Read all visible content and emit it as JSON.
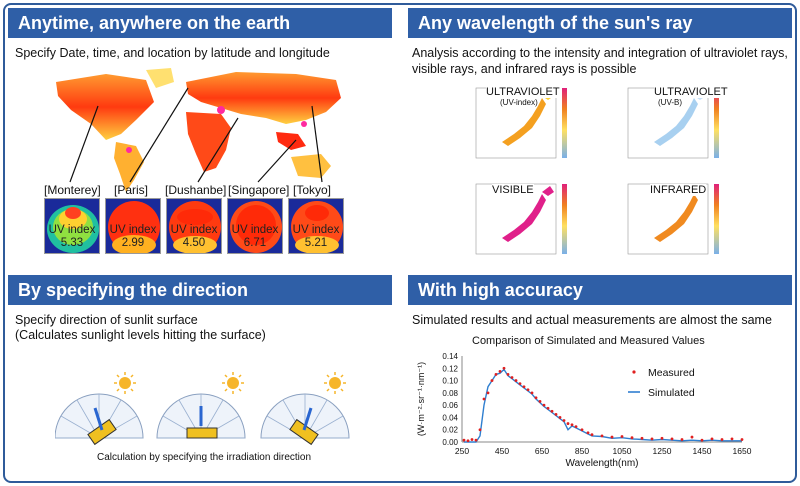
{
  "panels": {
    "anytime": {
      "title": "Anytime, anywhere on the earth",
      "desc": "Specify Date, time, and location by latitude and longitude",
      "cities": [
        {
          "name": "[Monterey]",
          "uv_label": "UV index",
          "uv_value": "5.33"
        },
        {
          "name": "[Paris]",
          "uv_label": "UV index",
          "uv_value": "2.99"
        },
        {
          "name": "[Dushanbe]",
          "uv_label": "UV index",
          "uv_value": "4.50"
        },
        {
          "name": "[Singapore]",
          "uv_label": "UV index",
          "uv_value": "6.71"
        },
        {
          "name": "[Tokyo]",
          "uv_label": "UV index",
          "uv_value": "5.21"
        }
      ]
    },
    "wavelength": {
      "title": "Any wavelength of the sun's ray",
      "desc_line1": "Analysis according to the intensity and integration of ultraviolet rays,",
      "desc_line2": "visible rays, and infrared rays is possible",
      "maps": [
        {
          "label": "ULTRAVIOLET",
          "sub": "(UV-index)"
        },
        {
          "label": "ULTRAVIOLET",
          "sub": "(UV-B)"
        },
        {
          "label": "VISIBLE",
          "sub": ""
        },
        {
          "label": "INFRARED",
          "sub": ""
        }
      ]
    },
    "direction": {
      "title": "By specifying the direction",
      "desc_line1": "Specify direction of sunlit surface",
      "desc_line2": "(Calculates sunlight levels hitting the surface)",
      "caption": "Calculation by specifying the irradiation direction"
    },
    "accuracy": {
      "title": "With high accuracy",
      "desc": "Simulated results and actual measurements are almost the same"
    }
  },
  "colors": {
    "header_bg": "#2f5fa7",
    "measured": "#e02020",
    "simulated": "#2f7fd0"
  },
  "chart_data": {
    "type": "line",
    "title": "Comparison of Simulated and Measured Values",
    "xlabel": "Wavelength(nm)",
    "ylabel": "(W·m⁻²·sr⁻¹·nm⁻¹)",
    "xlim": [
      250,
      1650
    ],
    "ylim": [
      0,
      0.14
    ],
    "x_ticks": [
      "250",
      "450",
      "650",
      "850",
      "1050",
      "1250",
      "1450",
      "1650"
    ],
    "y_ticks": [
      "0.00",
      "0.02",
      "0.04",
      "0.06",
      "0.08",
      "0.10",
      "0.12",
      "0.14"
    ],
    "series": [
      {
        "name": "Measured",
        "style": "points",
        "x": [
          260,
          280,
          300,
          320,
          340,
          360,
          380,
          400,
          420,
          440,
          460,
          480,
          500,
          520,
          540,
          560,
          580,
          600,
          620,
          640,
          660,
          680,
          700,
          720,
          740,
          760,
          780,
          800,
          820,
          850,
          880,
          900,
          950,
          1000,
          1050,
          1100,
          1150,
          1200,
          1250,
          1300,
          1350,
          1400,
          1450,
          1500,
          1550,
          1600,
          1650
        ],
        "y": [
          0.003,
          0.002,
          0.004,
          0.003,
          0.02,
          0.07,
          0.08,
          0.1,
          0.11,
          0.115,
          0.12,
          0.11,
          0.105,
          0.1,
          0.095,
          0.09,
          0.085,
          0.08,
          0.072,
          0.066,
          0.06,
          0.055,
          0.05,
          0.045,
          0.04,
          0.035,
          0.03,
          0.028,
          0.025,
          0.02,
          0.015,
          0.012,
          0.01,
          0.008,
          0.009,
          0.007,
          0.006,
          0.005,
          0.006,
          0.005,
          0.004,
          0.008,
          0.003,
          0.005,
          0.004,
          0.005,
          0.004
        ]
      },
      {
        "name": "Simulated",
        "style": "line",
        "x": [
          260,
          280,
          300,
          320,
          340,
          360,
          380,
          400,
          420,
          440,
          460,
          480,
          500,
          520,
          540,
          560,
          580,
          600,
          620,
          640,
          660,
          680,
          700,
          720,
          740,
          760,
          780,
          800,
          820,
          850,
          880,
          900,
          950,
          1000,
          1050,
          1100,
          1150,
          1200,
          1250,
          1300,
          1350,
          1400,
          1450,
          1500,
          1550,
          1600,
          1650
        ],
        "y": [
          0.0,
          0.0,
          0.0,
          0.0,
          0.01,
          0.06,
          0.09,
          0.1,
          0.11,
          0.112,
          0.118,
          0.108,
          0.103,
          0.098,
          0.093,
          0.088,
          0.083,
          0.078,
          0.07,
          0.064,
          0.058,
          0.053,
          0.048,
          0.043,
          0.038,
          0.033,
          0.02,
          0.026,
          0.023,
          0.018,
          0.013,
          0.01,
          0.009,
          0.006,
          0.007,
          0.005,
          0.004,
          0.003,
          0.004,
          0.003,
          0.002,
          0.003,
          0.002,
          0.003,
          0.002,
          0.002,
          0.002
        ]
      }
    ]
  }
}
